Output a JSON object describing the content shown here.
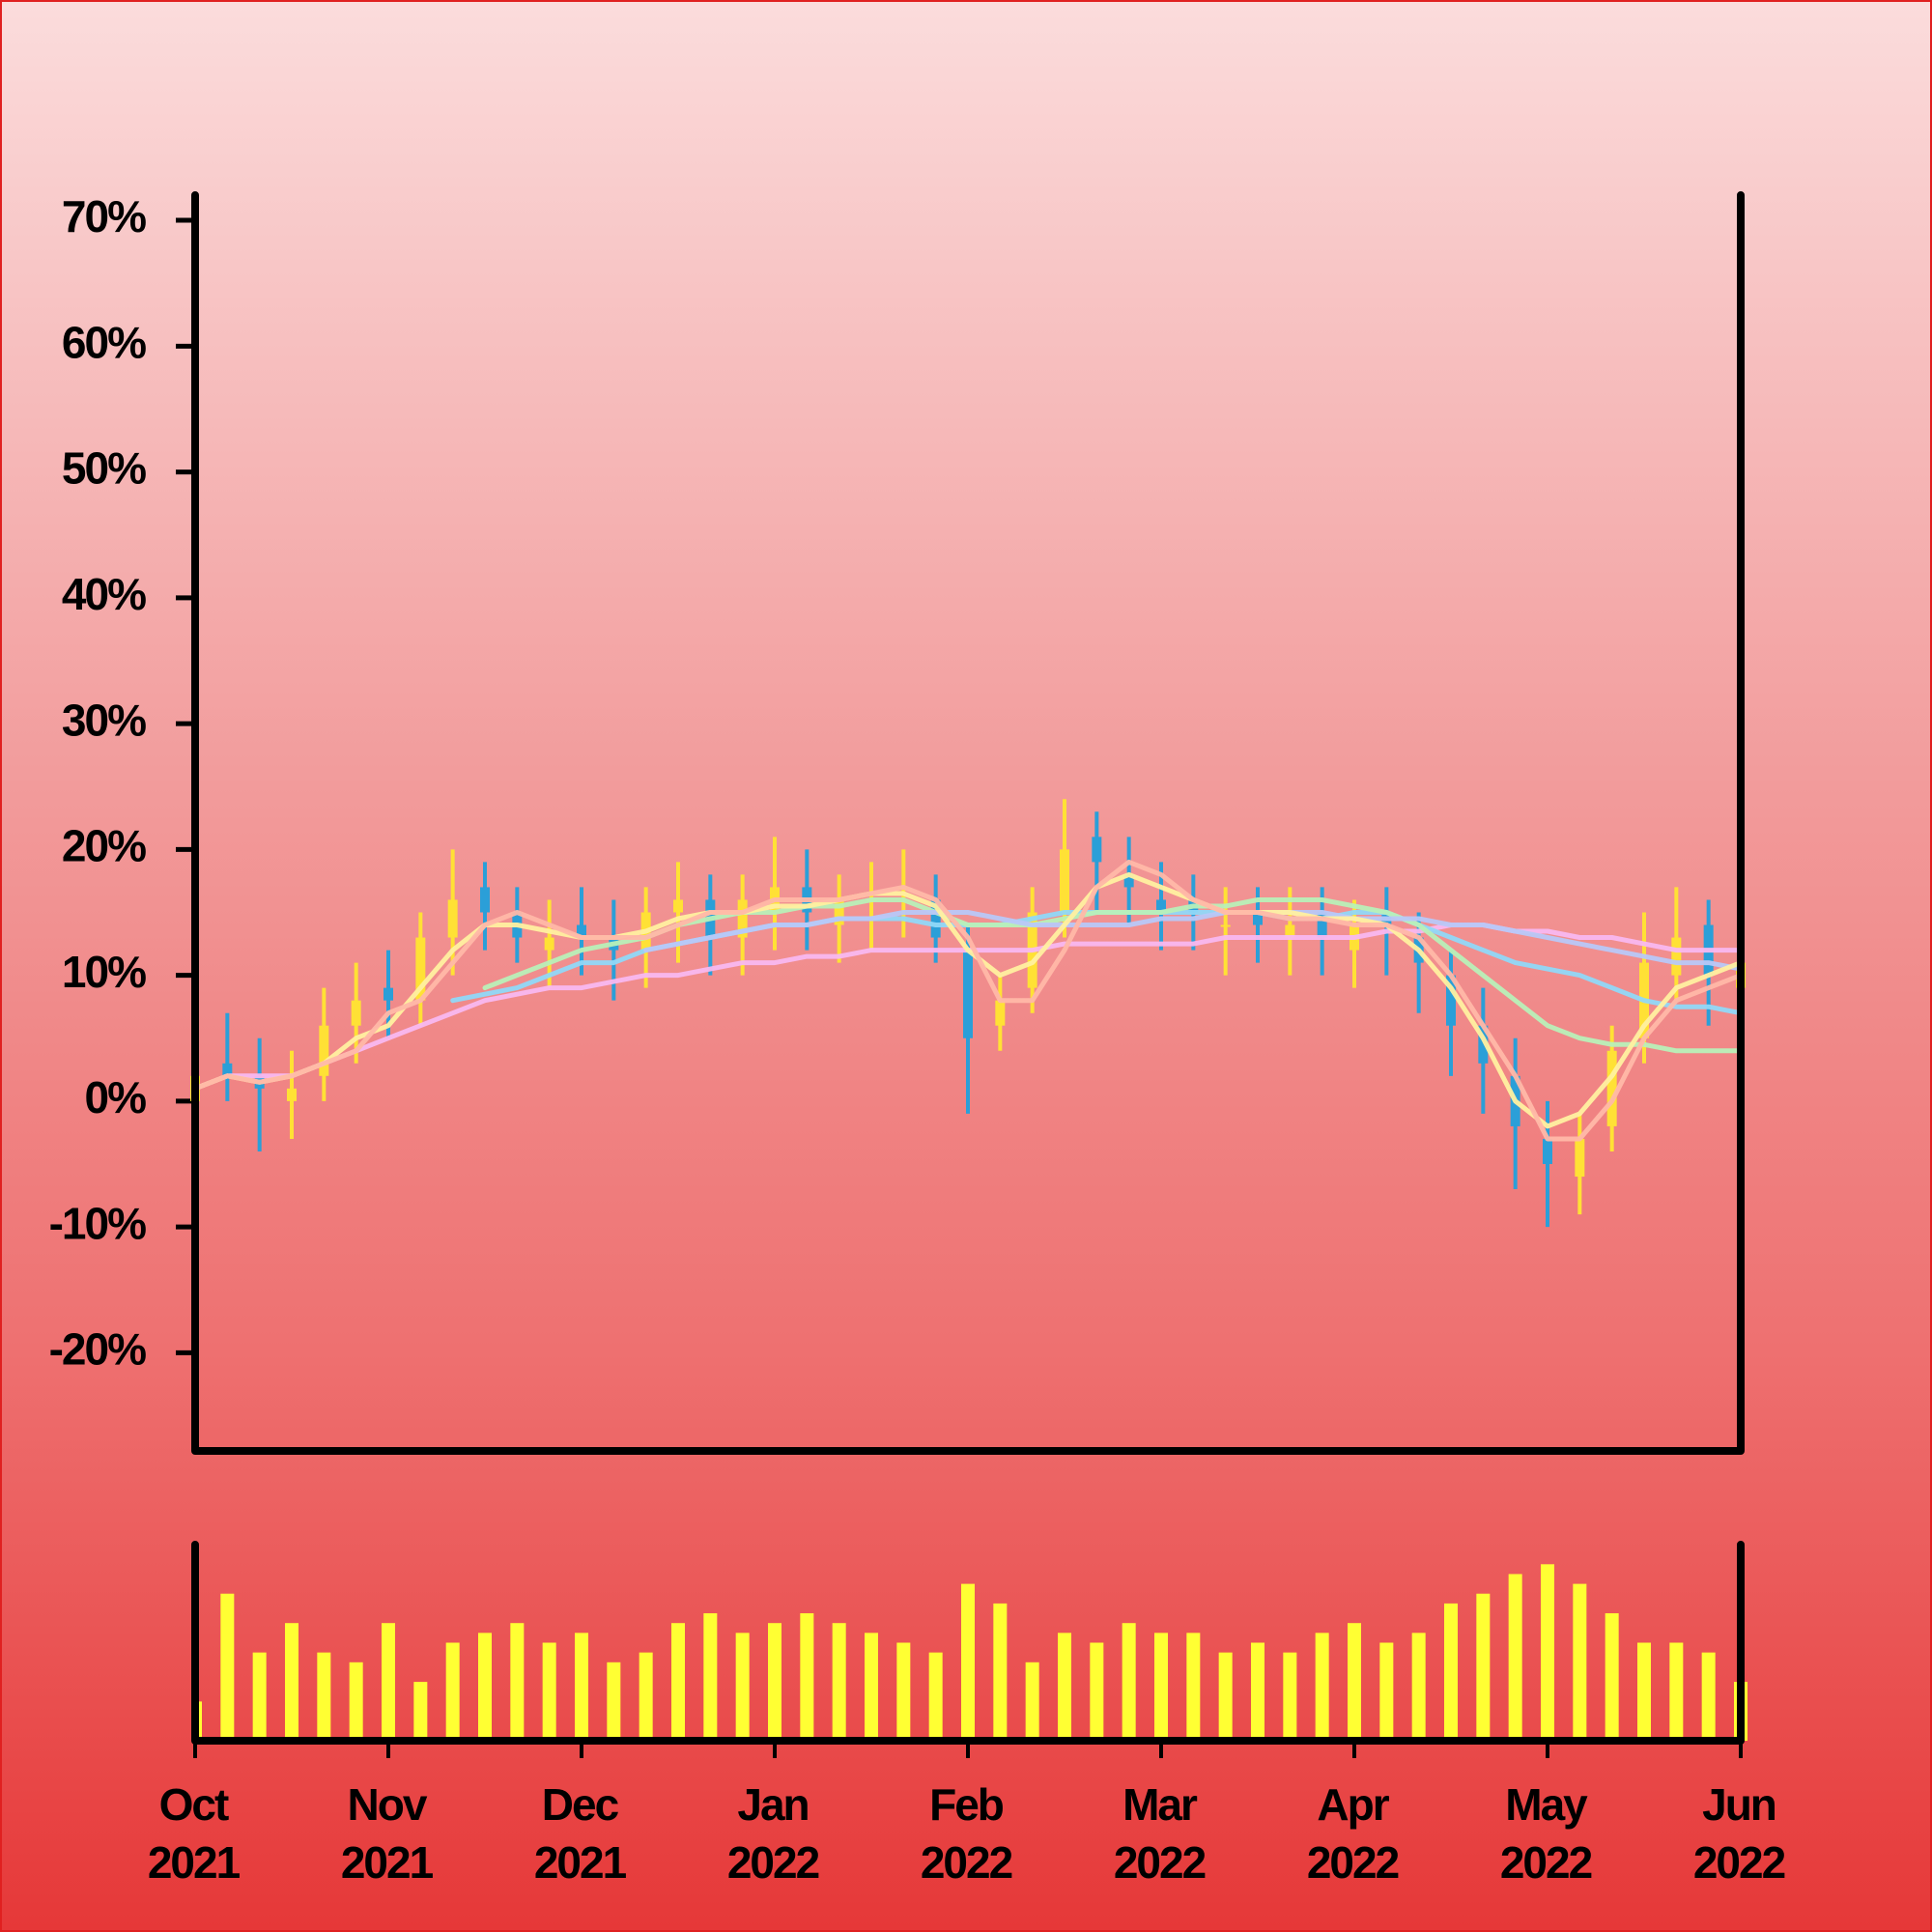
{
  "chart_data": {
    "type": "candlestick",
    "categories": [
      "Oct 2021",
      null,
      null,
      null,
      null,
      null,
      "Nov 2021",
      null,
      null,
      null,
      null,
      null,
      "Dec 2021",
      null,
      null,
      null,
      null,
      null,
      "Jan 2022",
      null,
      null,
      null,
      null,
      null,
      "Feb 2022",
      null,
      null,
      null,
      null,
      null,
      "Mar 2022",
      null,
      null,
      null,
      null,
      null,
      "Apr 2022",
      null,
      null,
      null,
      null,
      null,
      "May 2022",
      null,
      null,
      null,
      null,
      null,
      "Jun 2022"
    ],
    "open": [
      0,
      3,
      2,
      0,
      2,
      6,
      9,
      8,
      13,
      17,
      15,
      12,
      14,
      13,
      12,
      15,
      16,
      13,
      15,
      17,
      14,
      16,
      17,
      16,
      12,
      6,
      9,
      15,
      21,
      18,
      16,
      16,
      14,
      15,
      13,
      15,
      12,
      15,
      13,
      10,
      6,
      2,
      -3,
      -6,
      -2,
      5,
      10,
      14,
      9
    ],
    "high": [
      7,
      7,
      5,
      4,
      9,
      11,
      12,
      15,
      20,
      19,
      17,
      16,
      17,
      16,
      17,
      19,
      18,
      18,
      21,
      20,
      18,
      19,
      20,
      18,
      14,
      10,
      17,
      24,
      23,
      21,
      19,
      18,
      17,
      17,
      17,
      17,
      16,
      17,
      15,
      12,
      9,
      5,
      0,
      -1,
      6,
      15,
      17,
      16,
      13
    ],
    "low": [
      -3,
      0,
      -4,
      -3,
      0,
      3,
      5,
      6,
      10,
      12,
      11,
      9,
      10,
      8,
      9,
      11,
      10,
      10,
      12,
      12,
      11,
      12,
      13,
      11,
      -1,
      4,
      7,
      13,
      15,
      14,
      12,
      12,
      10,
      11,
      10,
      10,
      9,
      10,
      7,
      2,
      -1,
      -7,
      -10,
      -9,
      -4,
      3,
      8,
      6,
      6
    ],
    "close": [
      2,
      2,
      1,
      1,
      6,
      8,
      8,
      13,
      16,
      15,
      13,
      13,
      13,
      12,
      15,
      16,
      13,
      16,
      17,
      15,
      16,
      16,
      17,
      13,
      5,
      8,
      15,
      20,
      19,
      17,
      15,
      15,
      14,
      14,
      14,
      13,
      14,
      14,
      11,
      6,
      3,
      -2,
      -5,
      -3,
      4,
      11,
      13,
      10,
      11
    ],
    "up_color": "#ffe135",
    "down_color": "#2b9fd8",
    "ylim": [
      -27.8,
      72
    ],
    "yticks": [
      {
        "value": -20,
        "label": "-20%"
      },
      {
        "value": -10,
        "label": "-10%"
      },
      {
        "value": 0,
        "label": "0%"
      },
      {
        "value": 10,
        "label": "10%"
      },
      {
        "value": 20,
        "label": "20%"
      },
      {
        "value": 30,
        "label": "30%"
      },
      {
        "value": 40,
        "label": "40%"
      },
      {
        "value": 50,
        "label": "50%"
      },
      {
        "value": 60,
        "label": "60%"
      },
      {
        "value": 70,
        "label": "70%"
      }
    ],
    "moving_averages": [
      {
        "color": "#f8b8f0",
        "values": [
          1,
          2,
          2,
          2,
          3,
          4,
          5,
          6,
          7,
          8,
          8.5,
          9,
          9,
          9.5,
          10,
          10,
          10.5,
          11,
          11,
          11.5,
          11.5,
          12,
          12,
          12,
          12,
          12,
          12,
          12.5,
          12.5,
          12.5,
          12.5,
          12.5,
          13,
          13,
          13,
          13,
          13,
          13.5,
          13.5,
          14,
          14,
          13.5,
          13.5,
          13,
          13,
          12.5,
          12,
          12,
          12
        ]
      },
      {
        "color": "#90d8f8",
        "values": [
          null,
          null,
          null,
          null,
          null,
          null,
          null,
          null,
          8,
          8.5,
          9,
          10,
          11,
          11,
          12,
          12.5,
          13,
          13.5,
          14,
          14,
          14.5,
          14.5,
          14.5,
          14,
          14,
          14,
          14.5,
          15,
          15,
          15,
          15,
          15,
          15,
          15,
          14.5,
          14.5,
          15,
          15,
          14,
          13,
          12,
          11,
          10.5,
          10,
          9,
          8,
          7.5,
          7.5,
          7
        ]
      },
      {
        "color": "#b8f0b8",
        "values": [
          null,
          null,
          null,
          null,
          null,
          null,
          null,
          null,
          null,
          9,
          10,
          11,
          12,
          12.5,
          13,
          14,
          14.5,
          15,
          15,
          15.5,
          15.5,
          16,
          16,
          15,
          14,
          14,
          14,
          14.5,
          15,
          15,
          15,
          15.5,
          15.5,
          16,
          16,
          16,
          15.5,
          15,
          14,
          12,
          10,
          8,
          6,
          5,
          4.5,
          4.5,
          4,
          4,
          4
        ]
      },
      {
        "color": "#b8c8f8",
        "values": [
          null,
          null,
          null,
          null,
          null,
          null,
          null,
          null,
          null,
          null,
          null,
          null,
          null,
          null,
          12,
          12.5,
          13,
          13.5,
          14,
          14,
          14.5,
          14.5,
          15,
          15,
          15,
          14.5,
          14,
          14,
          14,
          14,
          14.5,
          14.5,
          15,
          15,
          15,
          15,
          14.5,
          14.5,
          14.5,
          14,
          14,
          13.5,
          13,
          12.5,
          12,
          11.5,
          11,
          11,
          10.5
        ]
      },
      {
        "color": "#fff0a0",
        "values": [
          1,
          2,
          1.5,
          2,
          3,
          5,
          6,
          9,
          12,
          14,
          14,
          13.5,
          13,
          13,
          13.5,
          14.5,
          15,
          15,
          15.5,
          15.5,
          16,
          16.5,
          16.5,
          15.5,
          12,
          10,
          11,
          14,
          17,
          18,
          17,
          16,
          15,
          15,
          15,
          14.5,
          14.5,
          14,
          12,
          9,
          5,
          0,
          -2,
          -1,
          2,
          6,
          9,
          10,
          11
        ]
      },
      {
        "color": "#ffb8a8",
        "values": [
          1,
          2,
          1.5,
          2,
          3,
          4,
          7,
          8,
          11,
          14,
          15,
          14,
          13,
          13,
          13,
          14,
          15,
          15,
          16,
          16,
          16,
          16.5,
          17,
          16,
          13,
          8,
          8,
          12,
          17,
          19,
          18,
          16,
          15,
          15,
          14.5,
          14.5,
          14,
          14,
          13,
          10,
          6,
          2,
          -3,
          -3,
          0,
          5,
          8,
          9,
          10
        ]
      }
    ],
    "volume": {
      "color": "#ffff33",
      "ylim": [
        0,
        100
      ],
      "values": [
        20,
        75,
        45,
        60,
        45,
        40,
        60,
        30,
        50,
        55,
        60,
        50,
        55,
        40,
        45,
        60,
        65,
        55,
        60,
        65,
        60,
        55,
        50,
        45,
        80,
        70,
        40,
        55,
        50,
        60,
        55,
        55,
        45,
        50,
        45,
        55,
        60,
        50,
        55,
        70,
        75,
        85,
        90,
        80,
        65,
        50,
        50,
        45,
        30
      ]
    }
  }
}
